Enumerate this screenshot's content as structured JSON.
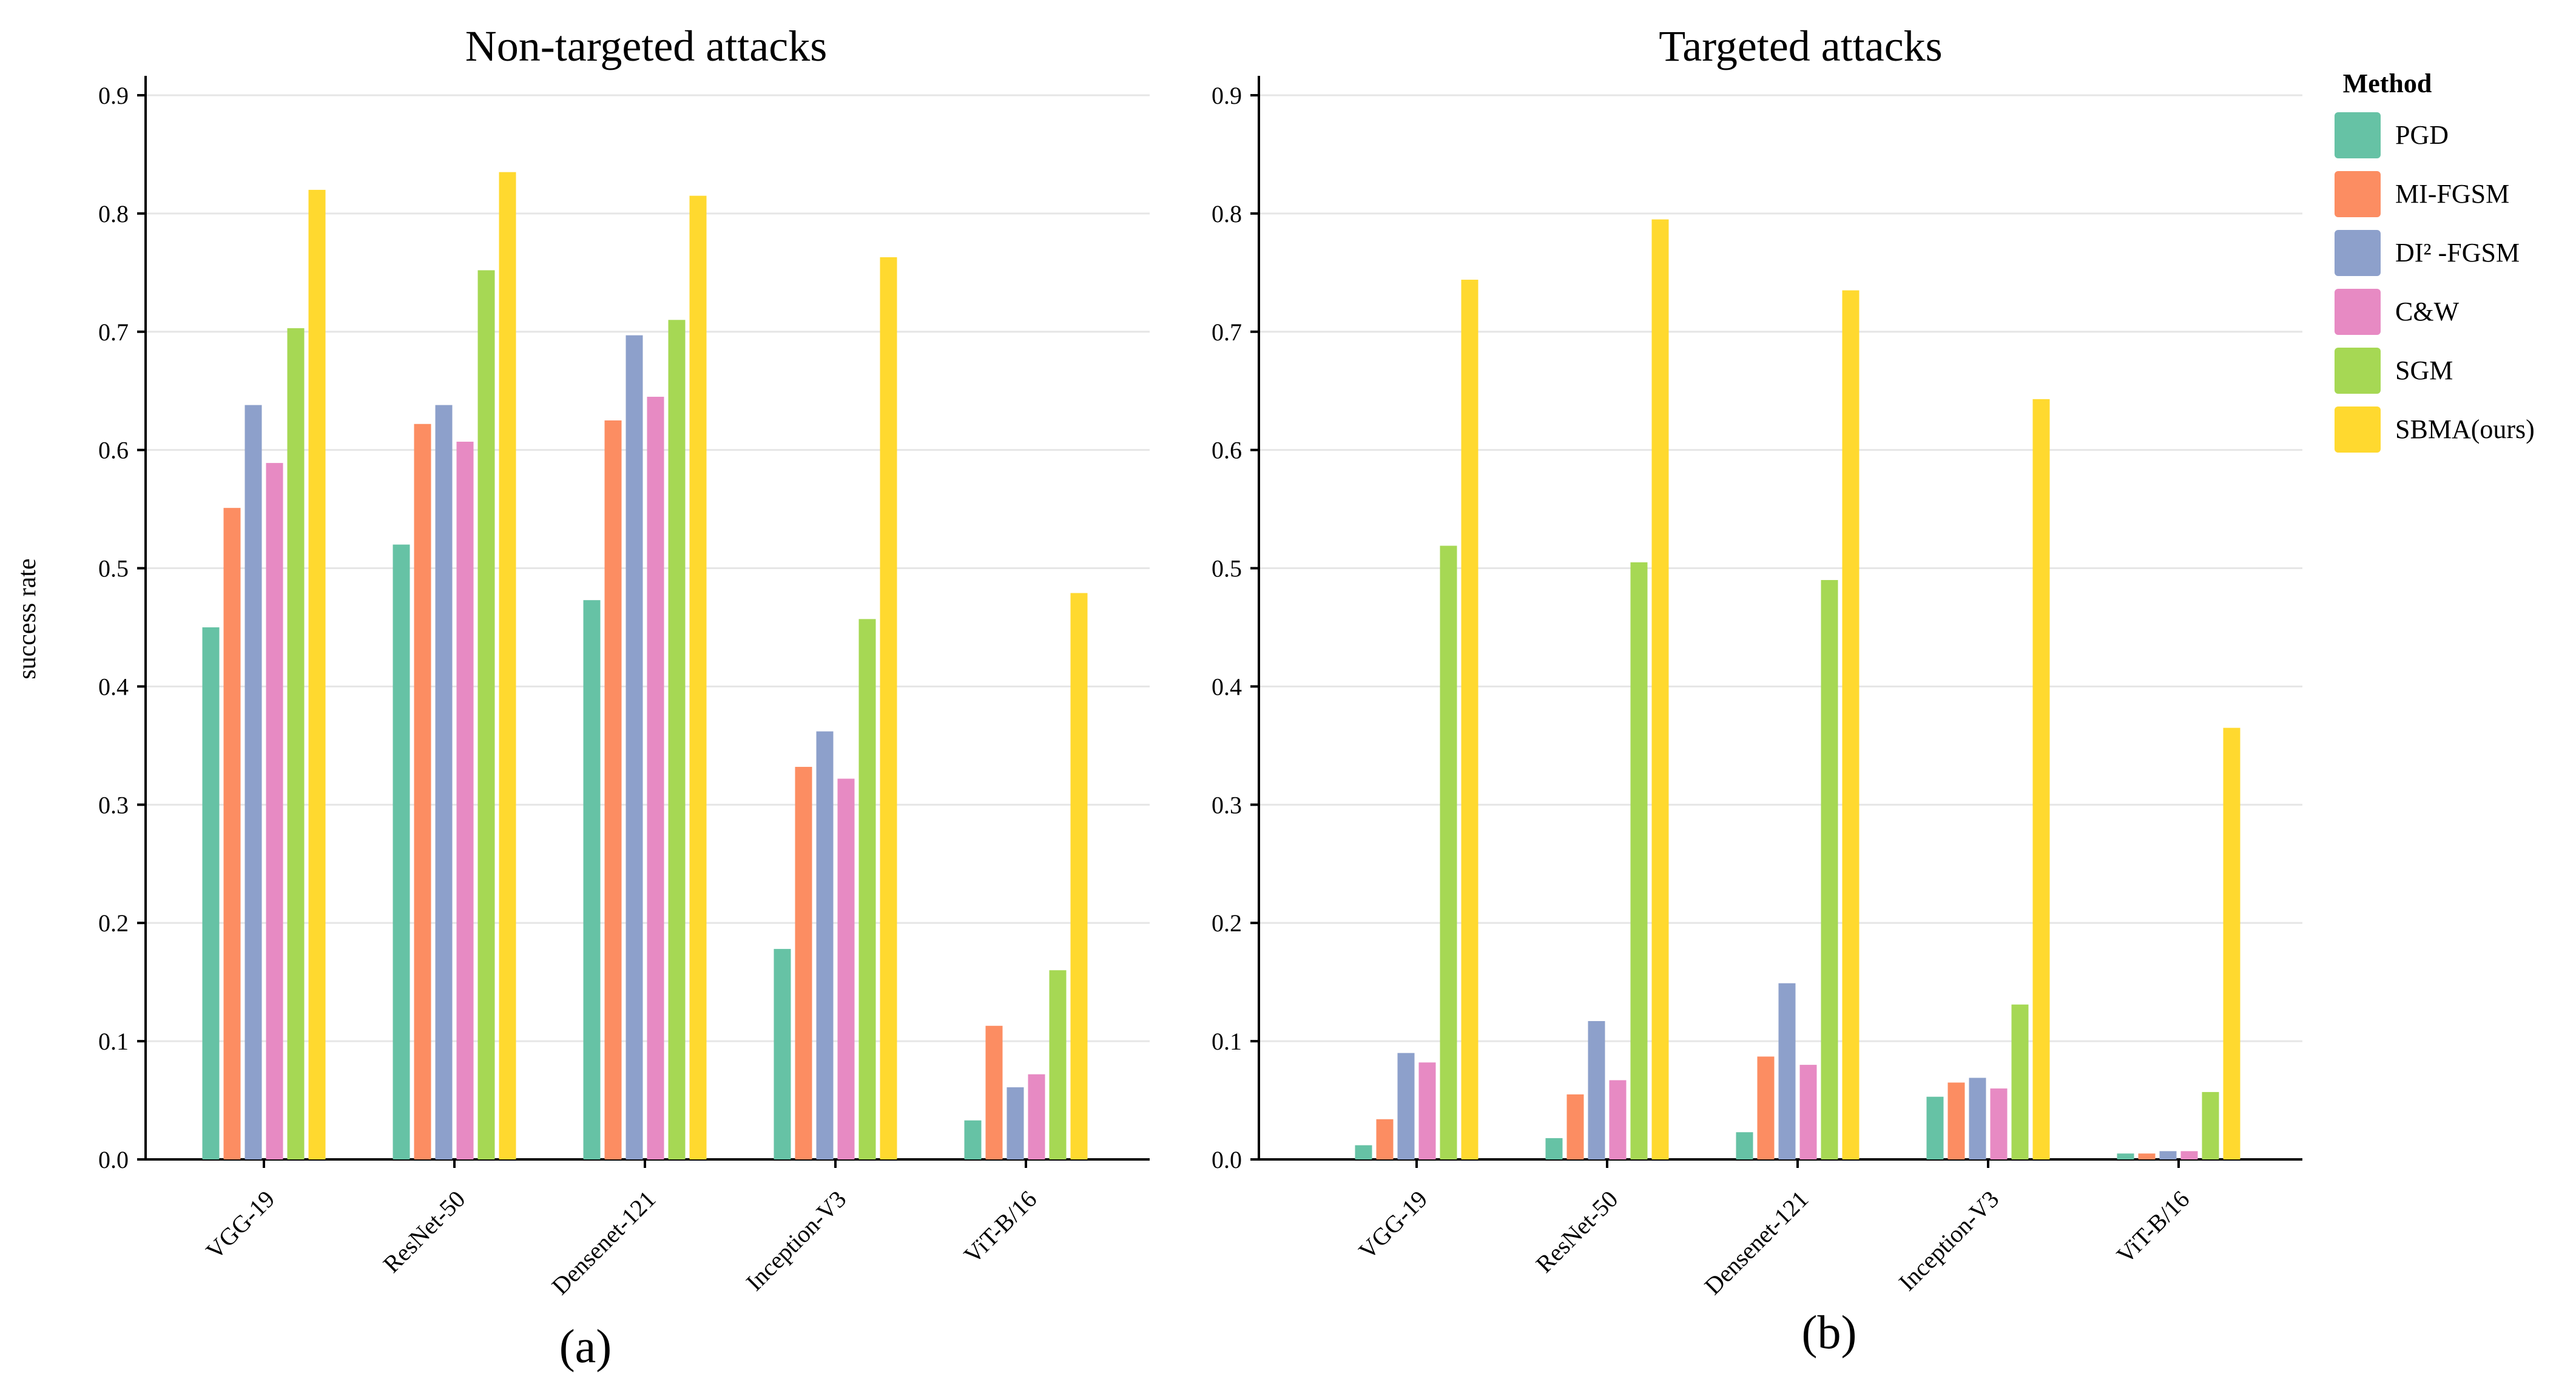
{
  "figure": {
    "ylabel": "success rate",
    "legend": {
      "title": "Method",
      "placement": "right"
    }
  },
  "chart_data": [
    {
      "type": "bar",
      "title": "Non-targeted attacks",
      "panel_label": "(a)",
      "xlabel": "",
      "ylabel": "success rate",
      "ylim": [
        0,
        0.9
      ],
      "yticks": [
        "0.0",
        "0.1",
        "0.2",
        "0.3",
        "0.4",
        "0.5",
        "0.6",
        "0.7",
        "0.8",
        "0.9"
      ],
      "grid": true,
      "categories": [
        "VGG-19",
        "ResNet-50",
        "Densenet-121",
        "Inception-V3",
        "ViT-B/16"
      ],
      "series": [
        {
          "name": "PGD",
          "color": "#66c2a5",
          "values": [
            0.45,
            0.52,
            0.473,
            0.178,
            0.033
          ]
        },
        {
          "name": "MI-FGSM",
          "color": "#fc8d62",
          "values": [
            0.551,
            0.622,
            0.625,
            0.332,
            0.113
          ]
        },
        {
          "name": "DI² -FGSM",
          "color": "#8da0cb",
          "values": [
            0.638,
            0.638,
            0.697,
            0.362,
            0.061
          ]
        },
        {
          "name": "C&W",
          "color": "#e78ac3",
          "values": [
            0.589,
            0.607,
            0.645,
            0.322,
            0.072
          ]
        },
        {
          "name": "SGM",
          "color": "#a6d854",
          "values": [
            0.703,
            0.752,
            0.71,
            0.457,
            0.16
          ]
        },
        {
          "name": "SBMA(ours)",
          "color": "#ffd92f",
          "values": [
            0.82,
            0.835,
            0.815,
            0.763,
            0.479
          ]
        }
      ]
    },
    {
      "type": "bar",
      "title": "Targeted attacks",
      "panel_label": "(b)",
      "xlabel": "",
      "ylabel": "",
      "ylim": [
        0,
        0.9
      ],
      "yticks": [
        "0.0",
        "0.1",
        "0.2",
        "0.3",
        "0.4",
        "0.5",
        "0.6",
        "0.7",
        "0.8",
        "0.9"
      ],
      "grid": true,
      "categories": [
        "VGG-19",
        "ResNet-50",
        "Densenet-121",
        "Inception-V3",
        "ViT-B/16"
      ],
      "series": [
        {
          "name": "PGD",
          "color": "#66c2a5",
          "values": [
            0.012,
            0.018,
            0.023,
            0.053,
            0.005
          ]
        },
        {
          "name": "MI-FGSM",
          "color": "#fc8d62",
          "values": [
            0.034,
            0.055,
            0.087,
            0.065,
            0.005
          ]
        },
        {
          "name": "DI² -FGSM",
          "color": "#8da0cb",
          "values": [
            0.09,
            0.117,
            0.149,
            0.069,
            0.007
          ]
        },
        {
          "name": "C&W",
          "color": "#e78ac3",
          "values": [
            0.082,
            0.067,
            0.08,
            0.06,
            0.007
          ]
        },
        {
          "name": "SGM",
          "color": "#a6d854",
          "values": [
            0.519,
            0.505,
            0.49,
            0.131,
            0.057
          ]
        },
        {
          "name": "SBMA(ours)",
          "color": "#ffd92f",
          "values": [
            0.744,
            0.795,
            0.735,
            0.643,
            0.365
          ]
        }
      ]
    }
  ]
}
